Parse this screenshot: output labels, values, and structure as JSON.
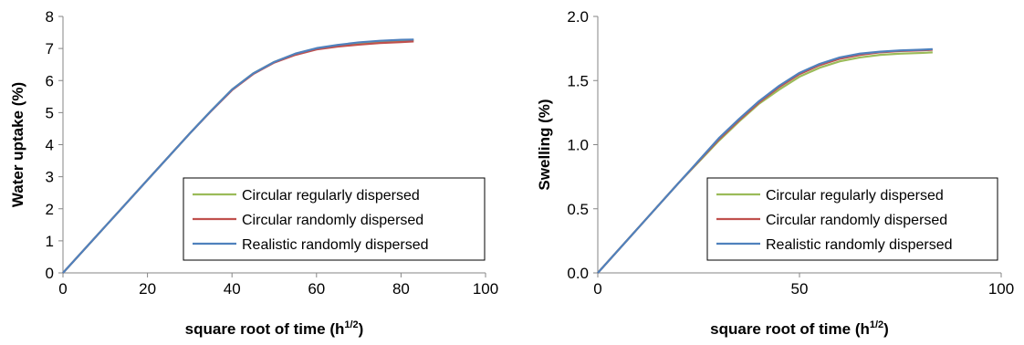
{
  "chart_data": [
    {
      "type": "line",
      "xlabel": "square root of time (h",
      "xlabel_sup": "1/2",
      "xlabel_end": ")",
      "ylabel": "Water uptake (%)",
      "xlim": [
        0,
        100
      ],
      "ylim": [
        0,
        8
      ],
      "xticks": [
        "0",
        "20",
        "40",
        "60",
        "80",
        "100"
      ],
      "xtick_values": [
        0,
        20,
        40,
        60,
        80,
        100
      ],
      "yticks": [
        "0",
        "1",
        "2",
        "3",
        "4",
        "5",
        "6",
        "7",
        "8"
      ],
      "ytick_values": [
        0,
        1,
        2,
        3,
        4,
        5,
        6,
        7,
        8
      ],
      "grid": false,
      "legend_position": "bottom-right",
      "series": [
        {
          "name": "Circular regularly dispersed",
          "color": "#9bbb59",
          "x": [
            0,
            10,
            20,
            30,
            35,
            40,
            45,
            50,
            55,
            60,
            65,
            70,
            75,
            80,
            83
          ],
          "y": [
            0,
            1.45,
            2.9,
            4.35,
            5.05,
            5.72,
            6.22,
            6.58,
            6.83,
            7.0,
            7.1,
            7.17,
            7.21,
            7.24,
            7.26
          ]
        },
        {
          "name": "Circular randomly dispersed",
          "color": "#c0504d",
          "x": [
            0,
            10,
            20,
            30,
            35,
            40,
            45,
            50,
            55,
            60,
            65,
            70,
            75,
            80,
            83
          ],
          "y": [
            0,
            1.45,
            2.9,
            4.35,
            5.04,
            5.7,
            6.2,
            6.56,
            6.8,
            6.97,
            7.06,
            7.12,
            7.17,
            7.2,
            7.22
          ]
        },
        {
          "name": "Realistic randomly dispersed",
          "color": "#4f81bd",
          "x": [
            0,
            10,
            20,
            30,
            35,
            40,
            45,
            50,
            55,
            60,
            65,
            70,
            75,
            80,
            83
          ],
          "y": [
            0,
            1.45,
            2.9,
            4.35,
            5.05,
            5.72,
            6.22,
            6.58,
            6.84,
            7.01,
            7.11,
            7.19,
            7.24,
            7.27,
            7.28
          ]
        }
      ]
    },
    {
      "type": "line",
      "xlabel": "square root of time (h",
      "xlabel_sup": "1/2",
      "xlabel_end": ")",
      "ylabel": "Swelling (%)",
      "xlim": [
        0,
        100
      ],
      "ylim": [
        0,
        2.0
      ],
      "xticks": [
        "0",
        "50",
        "100"
      ],
      "xtick_values": [
        0,
        50,
        100
      ],
      "yticks": [
        "0.0",
        "0.5",
        "1.0",
        "1.5",
        "2.0"
      ],
      "ytick_values": [
        0,
        0.5,
        1.0,
        1.5,
        2.0
      ],
      "grid": false,
      "legend_position": "bottom-right",
      "series": [
        {
          "name": "Circular regularly dispersed",
          "color": "#9bbb59",
          "x": [
            0,
            10,
            20,
            30,
            35,
            40,
            45,
            50,
            55,
            60,
            65,
            70,
            75,
            80,
            83
          ],
          "y": [
            0,
            0.35,
            0.7,
            1.03,
            1.18,
            1.32,
            1.43,
            1.53,
            1.6,
            1.65,
            1.68,
            1.7,
            1.71,
            1.715,
            1.72
          ]
        },
        {
          "name": "Circular randomly dispersed",
          "color": "#c0504d",
          "x": [
            0,
            10,
            20,
            30,
            35,
            40,
            45,
            50,
            55,
            60,
            65,
            70,
            75,
            80,
            83
          ],
          "y": [
            0,
            0.35,
            0.7,
            1.04,
            1.19,
            1.33,
            1.45,
            1.55,
            1.62,
            1.67,
            1.7,
            1.72,
            1.73,
            1.735,
            1.74
          ]
        },
        {
          "name": "Realistic randomly dispersed",
          "color": "#4f81bd",
          "x": [
            0,
            10,
            20,
            30,
            35,
            40,
            45,
            50,
            55,
            60,
            65,
            70,
            75,
            80,
            83
          ],
          "y": [
            0,
            0.35,
            0.7,
            1.05,
            1.2,
            1.34,
            1.46,
            1.56,
            1.63,
            1.68,
            1.71,
            1.725,
            1.735,
            1.74,
            1.745
          ]
        }
      ]
    }
  ]
}
